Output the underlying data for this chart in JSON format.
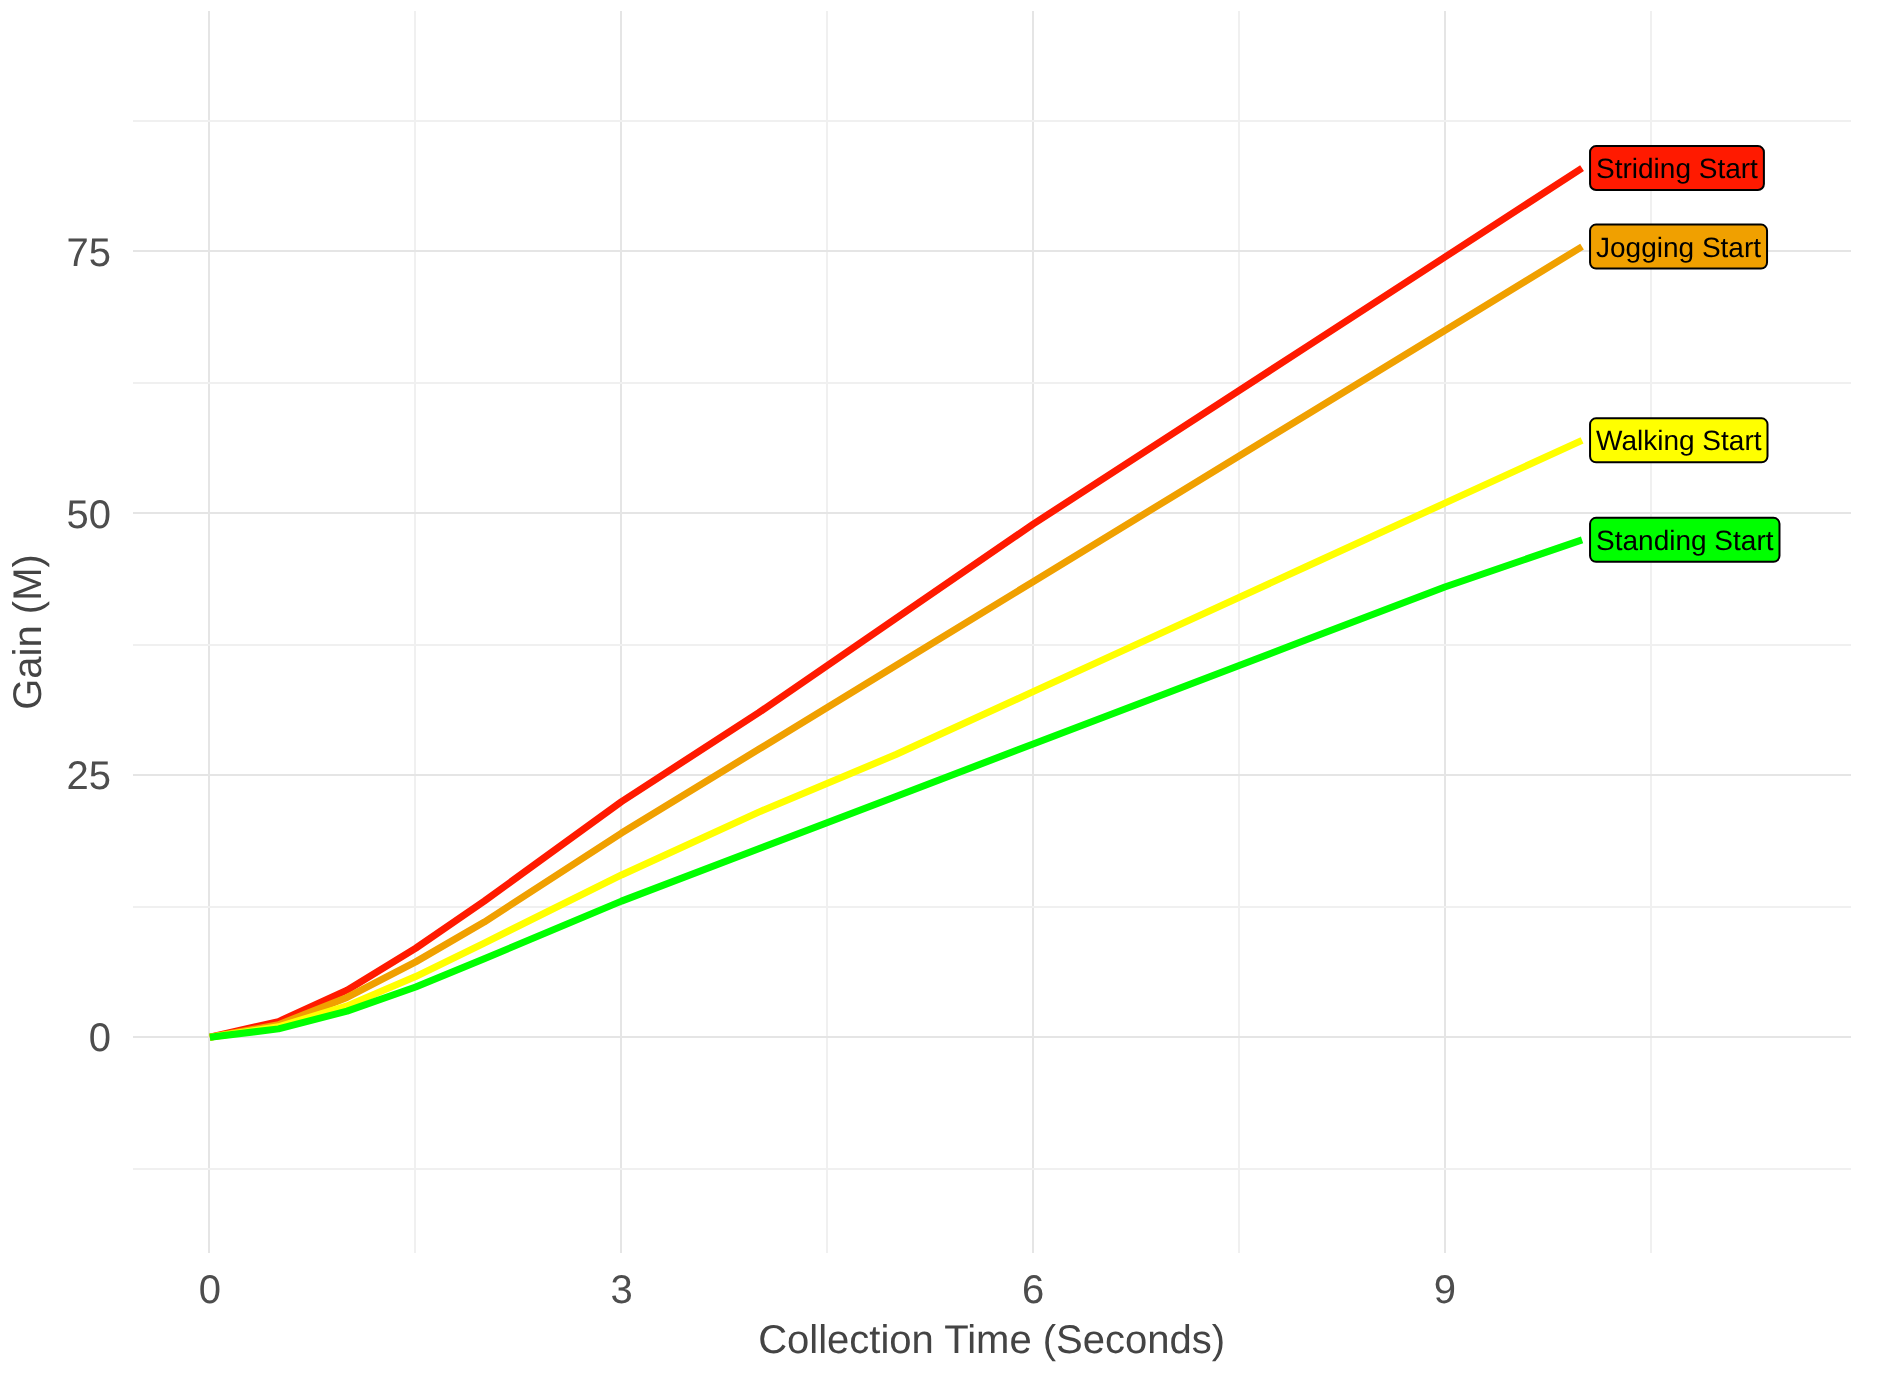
{
  "chart_data": {
    "type": "line",
    "xlabel": "Collection Time (Seconds)",
    "ylabel": "Gain (M)",
    "x": [
      0,
      0.5,
      1,
      1.5,
      2,
      3,
      4,
      5,
      6,
      7,
      8,
      9,
      10
    ],
    "series": [
      {
        "name": "Striding Start",
        "color": "#ff1a00",
        "values": [
          0,
          1.5,
          4.5,
          8.5,
          13,
          22.5,
          31,
          40,
          49,
          57.5,
          66,
          74.5,
          83
        ]
      },
      {
        "name": "Jogging Start",
        "color": "#f0a000",
        "values": [
          0,
          1.2,
          3.8,
          7.2,
          11,
          19.5,
          27.5,
          35.5,
          43.5,
          51.5,
          59.5,
          67.5,
          75.5
        ]
      },
      {
        "name": "Walking Start",
        "color": "#ffff00",
        "values": [
          0,
          1,
          3,
          5.8,
          9,
          15.5,
          21.5,
          27,
          33,
          39,
          45,
          51,
          57
        ]
      },
      {
        "name": "Standing Start",
        "color": "#00ff00",
        "values": [
          0,
          0.8,
          2.5,
          4.8,
          7.5,
          13,
          18,
          23,
          28,
          33,
          38,
          43,
          47.5
        ]
      }
    ],
    "xlim": [
      -0.56,
      11.96
    ],
    "ylim": [
      -20.6,
      98
    ],
    "xticks": [
      0,
      3,
      6,
      9
    ],
    "yticks": [
      0,
      25,
      50,
      75
    ],
    "grid": true,
    "legend": false,
    "line_style": "solid",
    "marker": "none"
  }
}
